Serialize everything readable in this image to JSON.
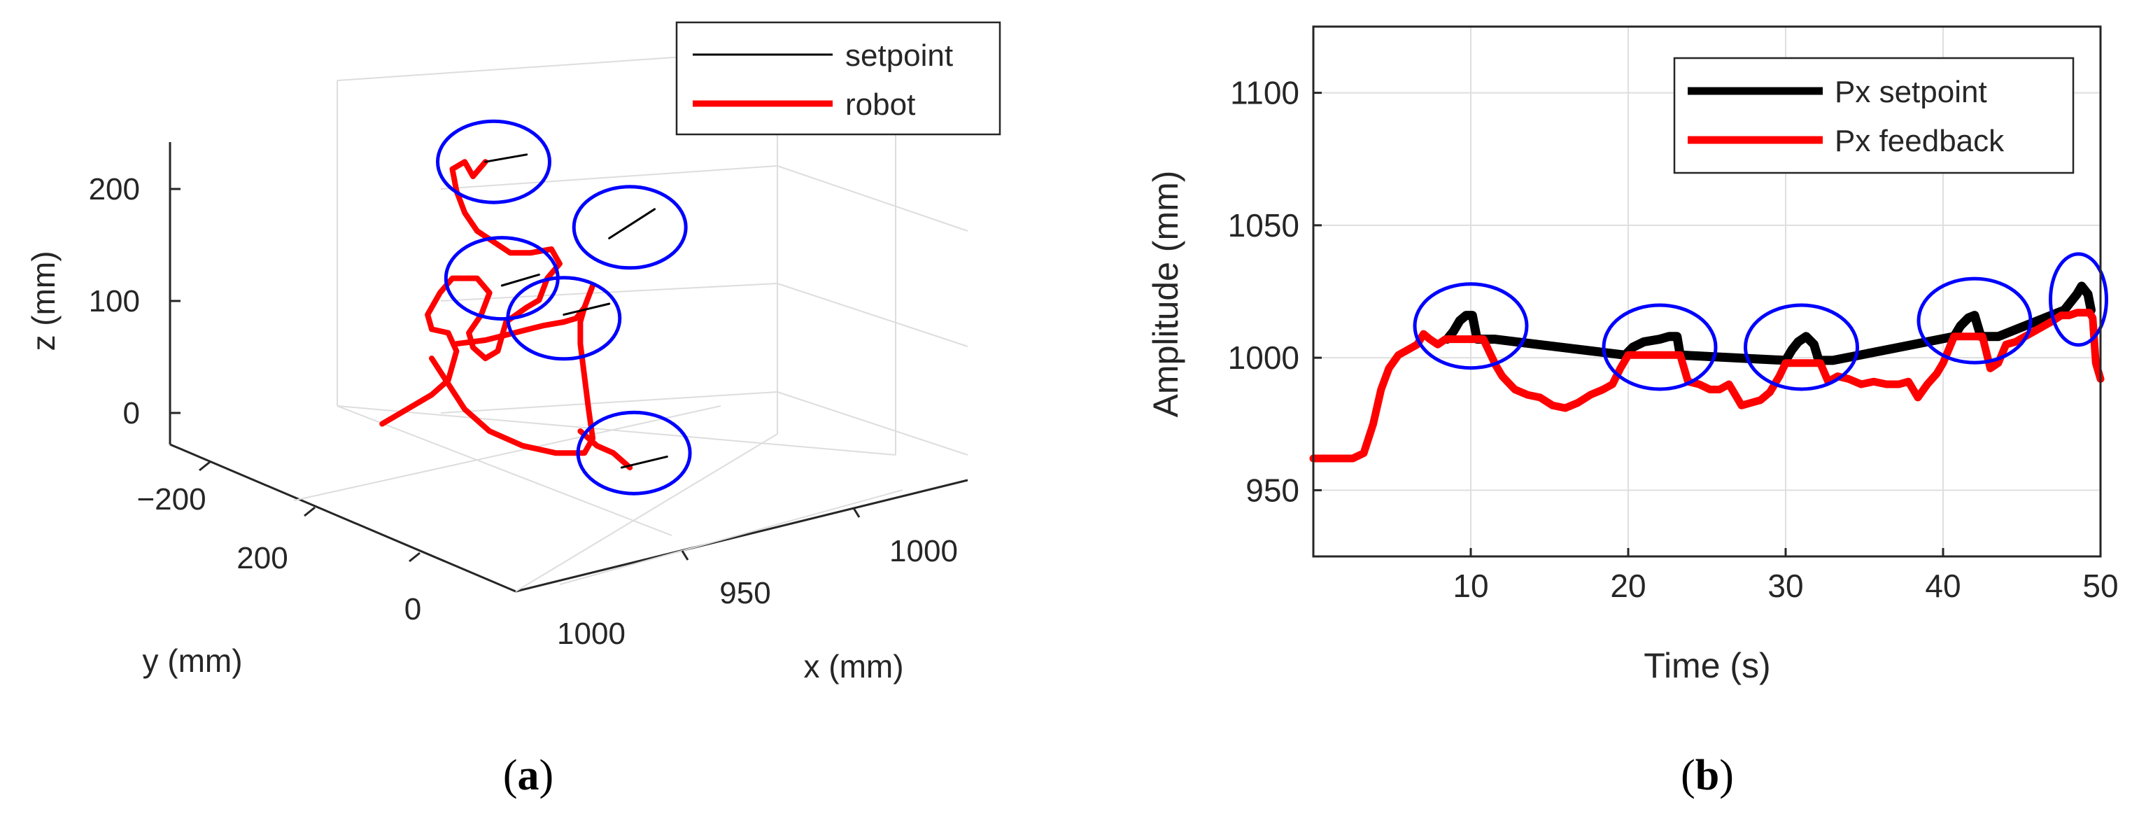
{
  "chart_data": [
    {
      "type": "line3d",
      "panel_label": "(a)",
      "panel_letter": "a",
      "xlabel": "x (mm)",
      "ylabel": "y (mm)",
      "zlabel": "z (mm)",
      "x_ticks": [
        "950",
        "1000"
      ],
      "y_ticks": [
        "1000",
        "200",
        "0",
        "−200"
      ],
      "z_ticks": [
        "200",
        "100",
        "0"
      ],
      "legend": {
        "position": "top-right",
        "entries": [
          {
            "label": "setpoint",
            "color": "#000000"
          },
          {
            "label": "robot",
            "color": "#ff0000"
          }
        ]
      },
      "series": [
        {
          "name": "robot",
          "color": "#ff0000",
          "points": [
            [
              0.18,
              0.78
            ],
            [
              0.24,
              0.74
            ],
            [
              0.3,
              0.7
            ],
            [
              0.34,
              0.66
            ],
            [
              0.36,
              0.58
            ],
            [
              0.34,
              0.53
            ],
            [
              0.3,
              0.52
            ],
            [
              0.29,
              0.48
            ],
            [
              0.32,
              0.42
            ],
            [
              0.35,
              0.38
            ],
            [
              0.41,
              0.38
            ],
            [
              0.44,
              0.42
            ],
            [
              0.42,
              0.48
            ],
            [
              0.39,
              0.53
            ],
            [
              0.4,
              0.57
            ],
            [
              0.43,
              0.6
            ],
            [
              0.46,
              0.58
            ],
            [
              0.48,
              0.5
            ],
            [
              0.53,
              0.46
            ],
            [
              0.56,
              0.44
            ],
            [
              0.58,
              0.38
            ],
            [
              0.61,
              0.34
            ],
            [
              0.59,
              0.3
            ],
            [
              0.54,
              0.31
            ],
            [
              0.49,
              0.31
            ],
            [
              0.45,
              0.28
            ],
            [
              0.41,
              0.25
            ],
            [
              0.38,
              0.2
            ],
            [
              0.36,
              0.14
            ],
            [
              0.35,
              0.08
            ],
            [
              0.38,
              0.06
            ],
            [
              0.4,
              0.1
            ],
            [
              0.43,
              0.06
            ]
          ]
        },
        {
          "name": "robot",
          "color": "#ff0000",
          "points": [
            [
              0.3,
              0.6
            ],
            [
              0.34,
              0.67
            ],
            [
              0.38,
              0.74
            ],
            [
              0.44,
              0.8
            ],
            [
              0.52,
              0.84
            ],
            [
              0.6,
              0.86
            ],
            [
              0.67,
              0.86
            ],
            [
              0.69,
              0.82
            ],
            [
              0.68,
              0.74
            ],
            [
              0.67,
              0.65
            ],
            [
              0.66,
              0.56
            ],
            [
              0.66,
              0.5
            ],
            [
              0.67,
              0.46
            ],
            [
              0.69,
              0.4
            ]
          ]
        },
        {
          "name": "robot",
          "color": "#ff0000",
          "points": [
            [
              0.36,
              0.56
            ],
            [
              0.43,
              0.55
            ],
            [
              0.5,
              0.53
            ],
            [
              0.57,
              0.51
            ],
            [
              0.62,
              0.5
            ],
            [
              0.65,
              0.49
            ],
            [
              0.67,
              0.46
            ]
          ]
        },
        {
          "name": "robot",
          "color": "#ff0000",
          "points": [
            [
              0.66,
              0.8
            ],
            [
              0.7,
              0.84
            ],
            [
              0.74,
              0.86
            ],
            [
              0.78,
              0.9
            ]
          ]
        },
        {
          "name": "setpoint",
          "color": "#000000",
          "points": [
            [
              0.43,
              0.06
            ],
            [
              0.53,
              0.04
            ]
          ]
        },
        {
          "name": "setpoint",
          "color": "#000000",
          "points": [
            [
              0.73,
              0.27
            ],
            [
              0.84,
              0.19
            ]
          ]
        },
        {
          "name": "setpoint",
          "color": "#000000",
          "points": [
            [
              0.47,
              0.4
            ],
            [
              0.56,
              0.37
            ]
          ]
        },
        {
          "name": "setpoint",
          "color": "#000000",
          "points": [
            [
              0.62,
              0.48
            ],
            [
              0.73,
              0.45
            ]
          ]
        },
        {
          "name": "setpoint",
          "color": "#000000",
          "points": [
            [
              0.76,
              0.9
            ],
            [
              0.87,
              0.87
            ]
          ]
        }
      ],
      "highlight_circles": [
        [
          0.45,
          0.06
        ],
        [
          0.78,
          0.24
        ],
        [
          0.47,
          0.38
        ],
        [
          0.62,
          0.49
        ],
        [
          0.79,
          0.86
        ]
      ]
    },
    {
      "type": "line",
      "panel_label": "(b)",
      "panel_letter": "b",
      "xlabel": "Time (s)",
      "ylabel": "Amplitude (mm)",
      "xlim": [
        0,
        50
      ],
      "ylim": [
        925,
        1125
      ],
      "x_ticks": [
        10,
        20,
        30,
        40,
        50
      ],
      "y_ticks": [
        950,
        1000,
        1050,
        1100
      ],
      "grid": true,
      "legend": {
        "position": "top-right",
        "entries": [
          {
            "label": "Px setpoint",
            "color": "#000000"
          },
          {
            "label": "Px feedback",
            "color": "#ff0000"
          }
        ]
      },
      "series": [
        {
          "name": "Px setpoint",
          "color": "#000000",
          "x": [
            8.5,
            8.9,
            9.3,
            9.7,
            10.1,
            10.4,
            11.5,
            19.8,
            20.3,
            21.0,
            22.0,
            22.6,
            23.1,
            23.3,
            30.0,
            30.4,
            30.8,
            31.3,
            31.8,
            32.1,
            33.0,
            40.7,
            41.1,
            41.6,
            42.0,
            42.4,
            43.5,
            47.7,
            48.1,
            48.5,
            48.8,
            49.2,
            49.4
          ],
          "values": [
            1007,
            1010,
            1014,
            1016,
            1016,
            1007,
            1007,
            1001,
            1004,
            1006,
            1007,
            1008,
            1008,
            1001,
            999,
            1003,
            1006,
            1008,
            1005,
            999,
            999,
            1008,
            1012,
            1015,
            1016,
            1008,
            1008,
            1018,
            1021,
            1024,
            1027,
            1024,
            1018
          ]
        },
        {
          "name": "Px feedback",
          "color": "#ff0000",
          "x": [
            0,
            2.5,
            3.2,
            3.8,
            4.3,
            4.8,
            5.4,
            6.0,
            6.6,
            7.0,
            7.4,
            7.9,
            8.4,
            9.0,
            10.0,
            10.8,
            11.2,
            11.6,
            12.0,
            12.8,
            13.6,
            14.4,
            15.2,
            16.0,
            16.8,
            17.6,
            18.4,
            19.0,
            19.5,
            20.0,
            22.0,
            23.3,
            23.8,
            24.5,
            25.2,
            25.8,
            26.4,
            26.8,
            27.2,
            27.8,
            28.4,
            29.0,
            29.6,
            30.0,
            31.0,
            32.2,
            32.7,
            33.3,
            34.0,
            34.8,
            35.6,
            36.4,
            37.2,
            37.8,
            38.4,
            39.0,
            39.6,
            40.0,
            40.7,
            42.5,
            43.0,
            43.5,
            44.0,
            44.6,
            45.2,
            45.8,
            46.4,
            47.0,
            47.5,
            48.0,
            48.5,
            49.0,
            49.3,
            49.5,
            49.7,
            50.0
          ],
          "values": [
            962,
            962,
            964,
            975,
            988,
            996,
            1001,
            1003,
            1005,
            1009,
            1007,
            1005,
            1007,
            1007,
            1007,
            1007,
            1002,
            997,
            993,
            988,
            986,
            985,
            982,
            981,
            983,
            986,
            988,
            990,
            996,
            1001,
            1001,
            1001,
            991,
            990,
            988,
            988,
            990,
            986,
            982,
            983,
            984,
            987,
            993,
            998,
            998,
            998,
            991,
            993,
            992,
            990,
            991,
            990,
            990,
            991,
            985,
            990,
            994,
            998,
            1008,
            1008,
            996,
            998,
            1005,
            1006,
            1008,
            1010,
            1012,
            1014,
            1016,
            1016,
            1017,
            1017,
            1017,
            1015,
            998,
            992
          ]
        }
      ],
      "highlight_circles": [
        {
          "x": 10,
          "y": 1012
        },
        {
          "x": 22,
          "y": 1004
        },
        {
          "x": 31,
          "y": 1004
        },
        {
          "x": 42,
          "y": 1014
        },
        {
          "x": 48.6,
          "y": 1022
        }
      ]
    }
  ]
}
